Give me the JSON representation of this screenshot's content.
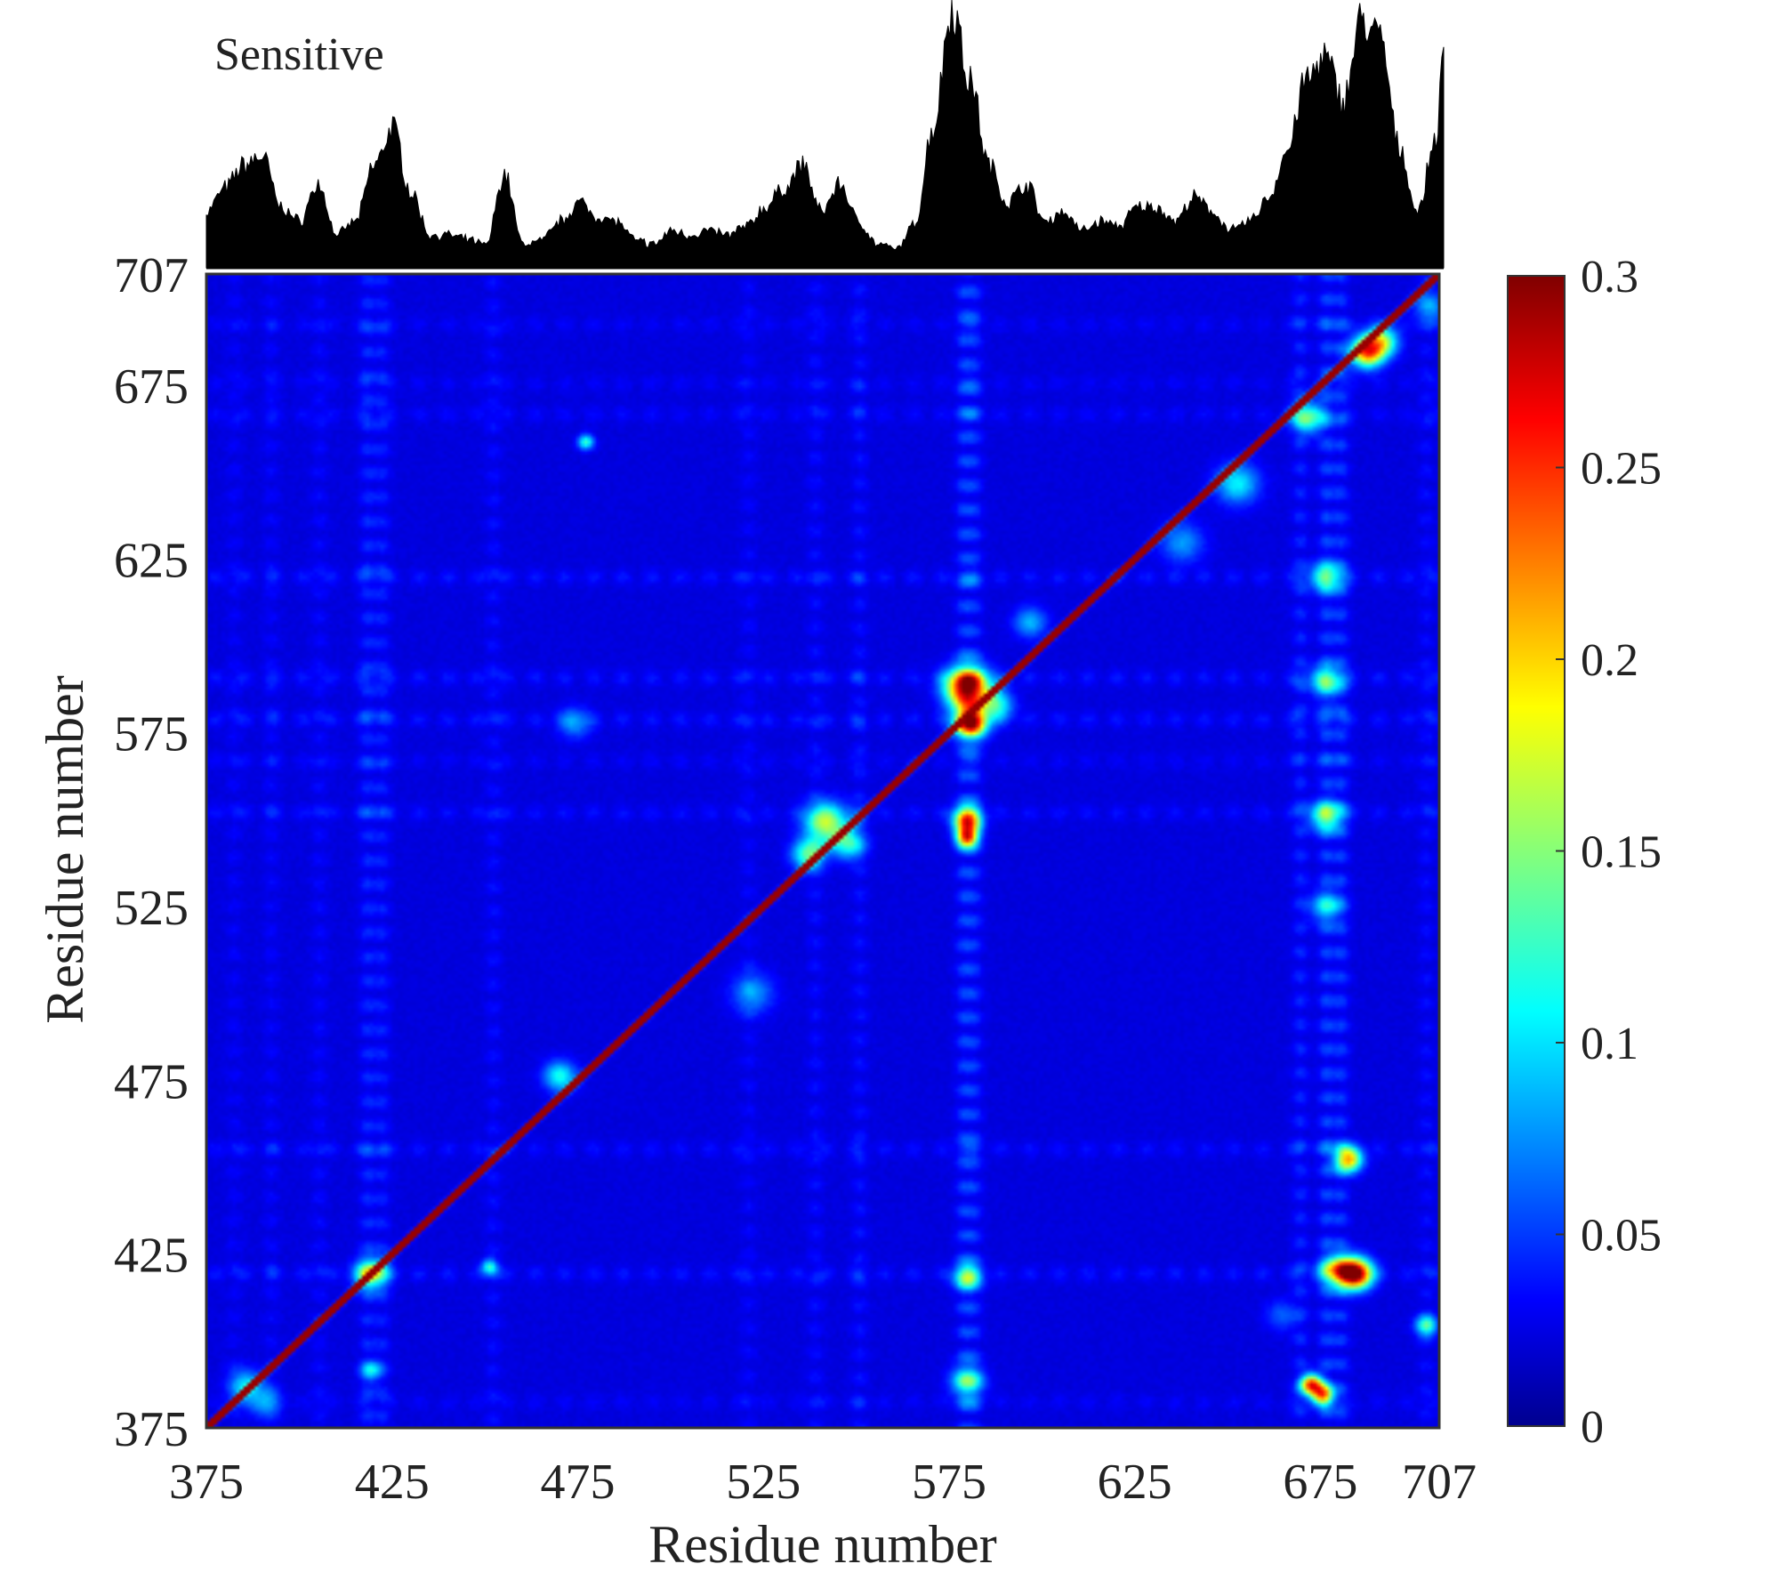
{
  "chart_data": [
    {
      "type": "area",
      "title": "Sensitive",
      "x": [
        375,
        380,
        385,
        390,
        395,
        400,
        405,
        410,
        415,
        420,
        425,
        430,
        435,
        440,
        445,
        450,
        455,
        460,
        465,
        470,
        475,
        480,
        485,
        490,
        495,
        500,
        505,
        510,
        515,
        520,
        525,
        530,
        535,
        540,
        545,
        550,
        555,
        560,
        565,
        570,
        575,
        580,
        585,
        590,
        595,
        600,
        605,
        610,
        615,
        620,
        625,
        630,
        635,
        640,
        645,
        650,
        655,
        660,
        665,
        670,
        675,
        680,
        685,
        690,
        695,
        700,
        705,
        707
      ],
      "values": [
        0.12,
        0.17,
        0.22,
        0.24,
        0.13,
        0.1,
        0.18,
        0.07,
        0.1,
        0.22,
        0.3,
        0.16,
        0.07,
        0.07,
        0.06,
        0.05,
        0.2,
        0.05,
        0.06,
        0.1,
        0.14,
        0.11,
        0.1,
        0.06,
        0.05,
        0.08,
        0.07,
        0.08,
        0.07,
        0.09,
        0.13,
        0.17,
        0.22,
        0.12,
        0.18,
        0.1,
        0.05,
        0.04,
        0.09,
        0.3,
        0.56,
        0.4,
        0.22,
        0.14,
        0.18,
        0.1,
        0.12,
        0.08,
        0.1,
        0.09,
        0.13,
        0.13,
        0.1,
        0.15,
        0.12,
        0.08,
        0.1,
        0.15,
        0.25,
        0.4,
        0.45,
        0.36,
        0.53,
        0.49,
        0.26,
        0.12,
        0.28,
        0.45
      ]
    },
    {
      "type": "heatmap",
      "xlabel": "Residue number",
      "ylabel": "Residue number",
      "xlim": [
        375,
        707
      ],
      "ylim": [
        375,
        707
      ],
      "xticks": [
        "375",
        "425",
        "475",
        "525",
        "575",
        "625",
        "675",
        "707"
      ],
      "yticks": [
        "375",
        "425",
        "475",
        "525",
        "575",
        "625",
        "675",
        "707"
      ],
      "colorbar": {
        "min": 0,
        "max": 0.3,
        "ticks": [
          "0",
          "0.05",
          "0.1",
          "0.15",
          "0.2",
          "0.25",
          "0.3"
        ],
        "colormap": "jet"
      },
      "background_level": 0.012,
      "diagonal_value": 0.3,
      "stripe_columns": [
        {
          "residue": 382,
          "level": 0.018
        },
        {
          "residue": 392,
          "level": 0.02
        },
        {
          "residue": 405,
          "level": 0.022
        },
        {
          "residue": 418,
          "level": 0.04
        },
        {
          "residue": 422,
          "level": 0.035
        },
        {
          "residue": 452,
          "level": 0.025
        },
        {
          "residue": 521,
          "level": 0.02
        },
        {
          "residue": 539,
          "level": 0.025
        },
        {
          "residue": 551,
          "level": 0.028
        },
        {
          "residue": 579,
          "level": 0.05
        },
        {
          "residue": 582,
          "level": 0.045
        },
        {
          "residue": 670,
          "level": 0.04
        },
        {
          "residue": 677,
          "level": 0.055
        },
        {
          "residue": 681,
          "level": 0.05
        },
        {
          "residue": 704,
          "level": 0.025
        }
      ],
      "stripe_rows": [
        {
          "residue": 382,
          "level": 0.02
        },
        {
          "residue": 419,
          "level": 0.035
        },
        {
          "residue": 455,
          "level": 0.03
        },
        {
          "residue": 552,
          "level": 0.03
        },
        {
          "residue": 567,
          "level": 0.02
        },
        {
          "residue": 579,
          "level": 0.035
        },
        {
          "residue": 591,
          "level": 0.035
        },
        {
          "residue": 620,
          "level": 0.035
        },
        {
          "residue": 667,
          "level": 0.025
        },
        {
          "residue": 676,
          "level": 0.02
        },
        {
          "residue": 693,
          "level": 0.02
        }
      ],
      "hotspots": [
        {
          "x": 580,
          "y": 588,
          "value": 0.3,
          "spread": 4
        },
        {
          "x": 581,
          "y": 578,
          "value": 0.26,
          "spread": 3
        },
        {
          "x": 580,
          "y": 550,
          "value": 0.22,
          "spread": 2.5
        },
        {
          "x": 580,
          "y": 545,
          "value": 0.24,
          "spread": 2
        },
        {
          "x": 580,
          "y": 418,
          "value": 0.12,
          "spread": 2.5
        },
        {
          "x": 580,
          "y": 388,
          "value": 0.11,
          "spread": 3
        },
        {
          "x": 685,
          "y": 419,
          "value": 0.3,
          "spread": 3
        },
        {
          "x": 680,
          "y": 420,
          "value": 0.16,
          "spread": 3
        },
        {
          "x": 683,
          "y": 452,
          "value": 0.2,
          "spread": 2.5
        },
        {
          "x": 673,
          "y": 387,
          "value": 0.24,
          "spread": 2
        },
        {
          "x": 676,
          "y": 384,
          "value": 0.2,
          "spread": 2
        },
        {
          "x": 677,
          "y": 551,
          "value": 0.12,
          "spread": 3
        },
        {
          "x": 677,
          "y": 590,
          "value": 0.1,
          "spread": 3
        },
        {
          "x": 677,
          "y": 620,
          "value": 0.1,
          "spread": 3
        },
        {
          "x": 677,
          "y": 525,
          "value": 0.08,
          "spread": 3
        },
        {
          "x": 542,
          "y": 549,
          "value": 0.15,
          "spread": 4
        },
        {
          "x": 537,
          "y": 540,
          "value": 0.12,
          "spread": 3
        },
        {
          "x": 548,
          "y": 543,
          "value": 0.1,
          "spread": 3
        },
        {
          "x": 419,
          "y": 419,
          "value": 0.15,
          "spread": 3
        },
        {
          "x": 419,
          "y": 391,
          "value": 0.08,
          "spread": 2
        },
        {
          "x": 470,
          "y": 476,
          "value": 0.1,
          "spread": 3
        },
        {
          "x": 474,
          "y": 578,
          "value": 0.06,
          "spread": 3
        },
        {
          "x": 477,
          "y": 659,
          "value": 0.11,
          "spread": 1.5
        },
        {
          "x": 451,
          "y": 421,
          "value": 0.1,
          "spread": 1.5
        },
        {
          "x": 588,
          "y": 583,
          "value": 0.1,
          "spread": 3
        },
        {
          "x": 597,
          "y": 607,
          "value": 0.07,
          "spread": 3
        },
        {
          "x": 522,
          "y": 500,
          "value": 0.06,
          "spread": 4
        },
        {
          "x": 688,
          "y": 685,
          "value": 0.22,
          "spread": 3
        },
        {
          "x": 692,
          "y": 688,
          "value": 0.14,
          "spread": 3
        },
        {
          "x": 672,
          "y": 666,
          "value": 0.12,
          "spread": 3
        },
        {
          "x": 653,
          "y": 647,
          "value": 0.09,
          "spread": 4
        },
        {
          "x": 638,
          "y": 630,
          "value": 0.06,
          "spread": 4
        },
        {
          "x": 385,
          "y": 387,
          "value": 0.08,
          "spread": 3
        },
        {
          "x": 390,
          "y": 382,
          "value": 0.06,
          "spread": 3
        },
        {
          "x": 704,
          "y": 404,
          "value": 0.12,
          "spread": 2
        },
        {
          "x": 705,
          "y": 698,
          "value": 0.06,
          "spread": 3
        },
        {
          "x": 665,
          "y": 407,
          "value": 0.04,
          "spread": 3
        }
      ]
    }
  ]
}
